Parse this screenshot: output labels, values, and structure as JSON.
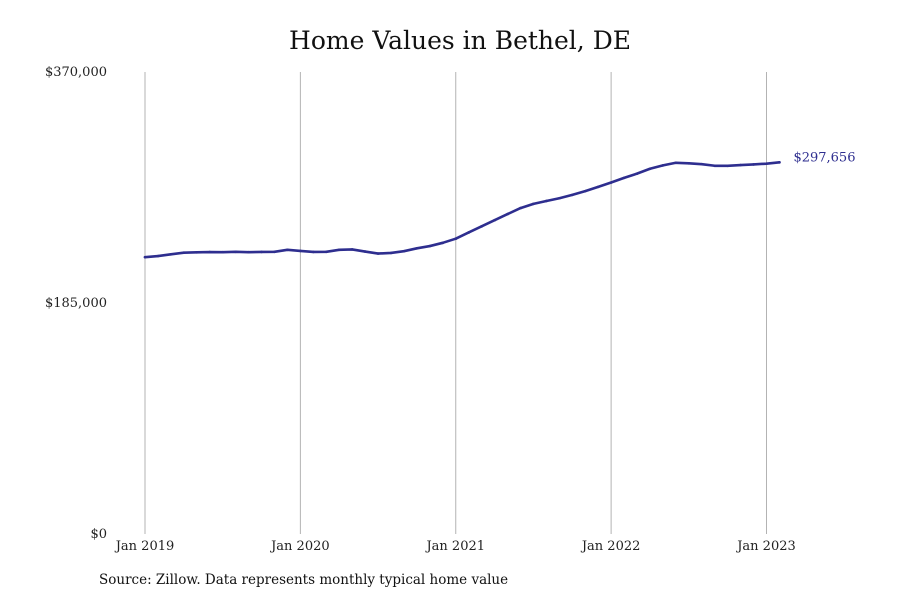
{
  "chart_data": {
    "type": "line",
    "title": "Home Values in Bethel, DE",
    "xlabel": "",
    "ylabel": "",
    "ylim": [
      0,
      370000
    ],
    "xlim": [
      "2019-01",
      "2023-03"
    ],
    "y_ticks": [
      {
        "value": 0,
        "label": "$0"
      },
      {
        "value": 185000,
        "label": "$185,000"
      },
      {
        "value": 370000,
        "label": "$370,000"
      }
    ],
    "x_ticks": [
      {
        "value": "2019-01",
        "label": "Jan 2019"
      },
      {
        "value": "2020-01",
        "label": "Jan 2020"
      },
      {
        "value": "2021-01",
        "label": "Jan 2021"
      },
      {
        "value": "2022-01",
        "label": "Jan 2022"
      },
      {
        "value": "2023-01",
        "label": "Jan 2023"
      }
    ],
    "grid": {
      "vertical": true,
      "horizontal": false
    },
    "series": [
      {
        "color": "#2e2e8f",
        "end_label": "$297,656",
        "points": [
          [
            "2019-01",
            221700
          ],
          [
            "2019-02",
            222600
          ],
          [
            "2019-03",
            224000
          ],
          [
            "2019-04",
            225300
          ],
          [
            "2019-05",
            225600
          ],
          [
            "2019-06",
            225800
          ],
          [
            "2019-07",
            225700
          ],
          [
            "2019-08",
            226000
          ],
          [
            "2019-09",
            225700
          ],
          [
            "2019-10",
            225900
          ],
          [
            "2019-11",
            226000
          ],
          [
            "2019-12",
            227600
          ],
          [
            "2020-01",
            226700
          ],
          [
            "2020-02",
            225900
          ],
          [
            "2020-03",
            226000
          ],
          [
            "2020-04",
            227600
          ],
          [
            "2020-05",
            227900
          ],
          [
            "2020-06",
            226200
          ],
          [
            "2020-07",
            224600
          ],
          [
            "2020-08",
            225100
          ],
          [
            "2020-09",
            226500
          ],
          [
            "2020-10",
            228800
          ],
          [
            "2020-11",
            230600
          ],
          [
            "2020-12",
            233200
          ],
          [
            "2021-01",
            236500
          ],
          [
            "2021-02",
            241500
          ],
          [
            "2021-03",
            246400
          ],
          [
            "2021-04",
            251300
          ],
          [
            "2021-05",
            256200
          ],
          [
            "2021-06",
            261000
          ],
          [
            "2021-07",
            264400
          ],
          [
            "2021-08",
            266700
          ],
          [
            "2021-09",
            268900
          ],
          [
            "2021-10",
            271600
          ],
          [
            "2021-11",
            274600
          ],
          [
            "2021-12",
            278000
          ],
          [
            "2022-01",
            281500
          ],
          [
            "2022-02",
            285200
          ],
          [
            "2022-03",
            288600
          ],
          [
            "2022-04",
            292500
          ],
          [
            "2022-05",
            295200
          ],
          [
            "2022-06",
            297300
          ],
          [
            "2022-07",
            296900
          ],
          [
            "2022-08",
            296200
          ],
          [
            "2022-09",
            294900
          ],
          [
            "2022-10",
            294900
          ],
          [
            "2022-11",
            295500
          ],
          [
            "2022-12",
            296000
          ],
          [
            "2023-01",
            296600
          ],
          [
            "2023-02",
            297656
          ]
        ]
      }
    ]
  },
  "source": "Source: Zillow. Data represents monthly typical home value"
}
